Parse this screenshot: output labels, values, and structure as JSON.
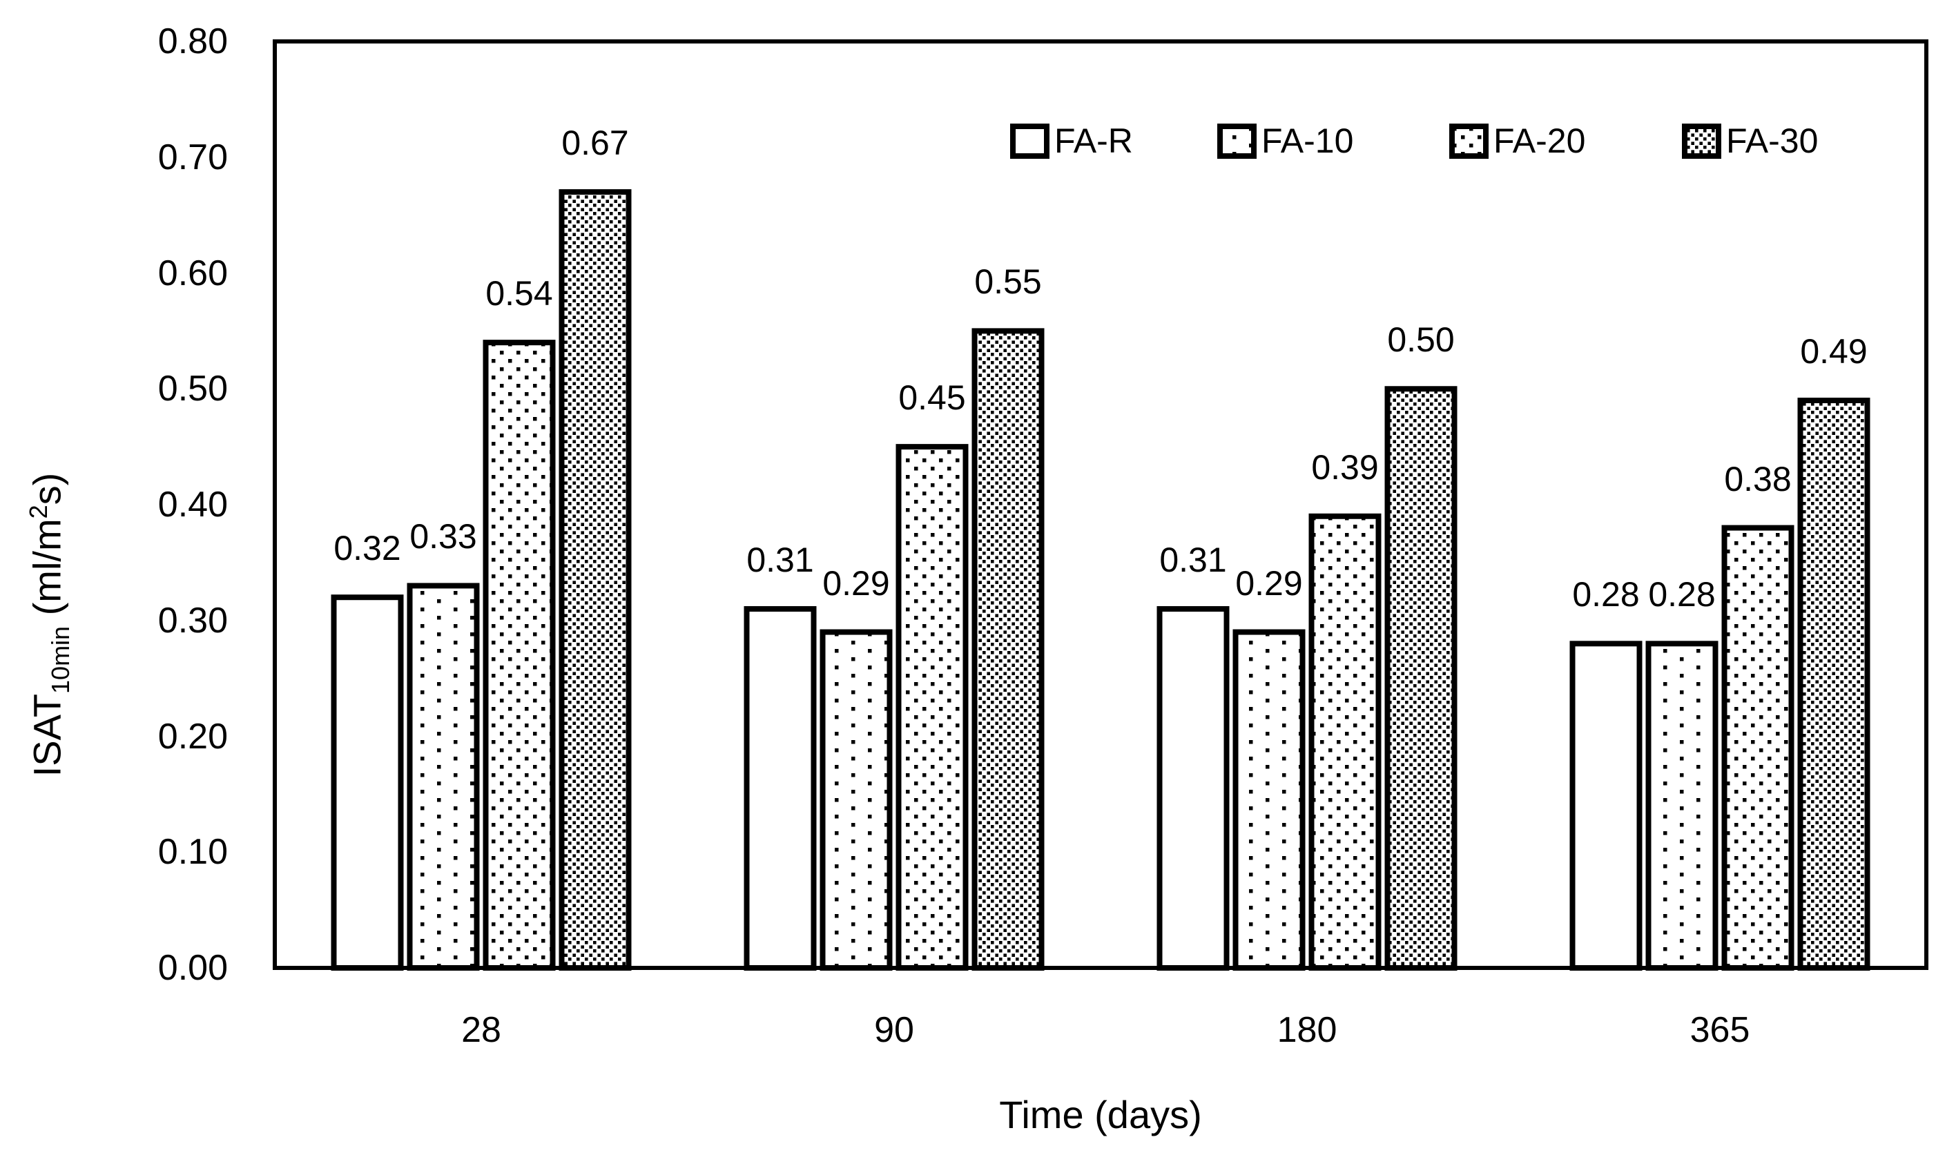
{
  "chart_data": {
    "type": "bar",
    "title": "",
    "categories": [
      "28",
      "90",
      "180",
      "365"
    ],
    "series": [
      {
        "name": "FA-R",
        "pattern": "plain",
        "values": [
          0.32,
          0.31,
          0.31,
          0.28
        ],
        "data_labels": [
          "0.32",
          "0.31",
          "0.31",
          "0.28"
        ]
      },
      {
        "name": "FA-10",
        "pattern": "dots-sparse",
        "values": [
          0.33,
          0.29,
          0.29,
          0.28
        ],
        "data_labels": [
          "0.33",
          "0.29",
          "0.29",
          "0.28"
        ]
      },
      {
        "name": "FA-20",
        "pattern": "dots-medium",
        "values": [
          0.54,
          0.45,
          0.39,
          0.38
        ],
        "data_labels": [
          "0.54",
          "0.45",
          "0.39",
          "0.38"
        ]
      },
      {
        "name": "FA-30",
        "pattern": "dots-dense",
        "values": [
          0.67,
          0.55,
          0.5,
          0.49
        ],
        "data_labels": [
          "0.67",
          "0.55",
          "0.50",
          "0.49"
        ]
      }
    ],
    "xlabel": "Time (days)",
    "ylabel": "ISAT10min (ml/m2s)",
    "ylabel_parts": {
      "base": "ISAT",
      "sub": "10min",
      "pre": " (ml/m",
      "sup": "2",
      "post": "s)"
    },
    "ylim": [
      0,
      0.8
    ],
    "yticks": [
      "0.00",
      "0.10",
      "0.20",
      "0.30",
      "0.40",
      "0.50",
      "0.60",
      "0.70",
      "0.80"
    ],
    "grid": false,
    "legend_position": "top-right-inside",
    "bar_fill": "#ffffff",
    "bar_border_color": "#000000",
    "text_color": "#000000",
    "background": "#ffffff"
  }
}
